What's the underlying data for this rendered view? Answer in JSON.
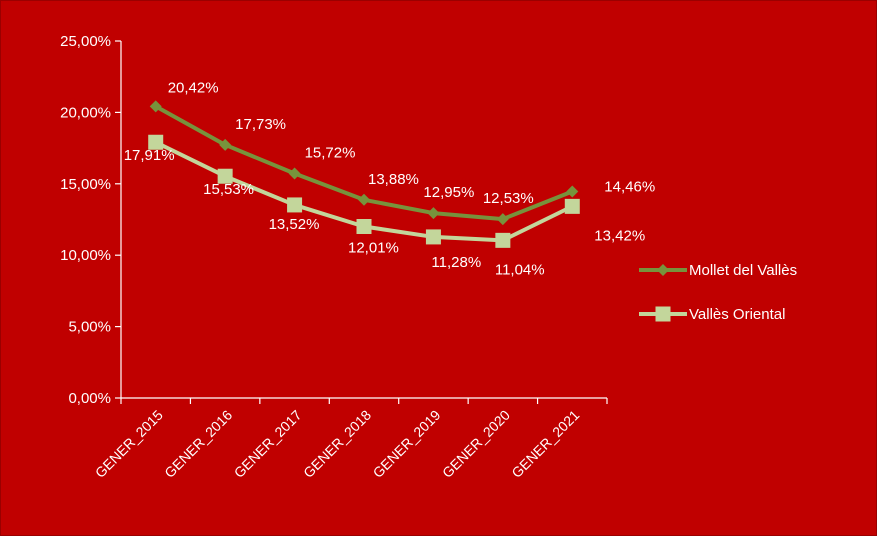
{
  "colors": {
    "background": "#c00000",
    "axis": "#ffffff",
    "series_1": "#77933c",
    "series_2": "#c3d69b"
  },
  "chart_data": {
    "type": "line",
    "title": "",
    "xlabel": "",
    "ylabel": "",
    "categories": [
      "GENER_2015",
      "GENER_2016",
      "GENER_2017",
      "GENER_2018",
      "GENER_2019",
      "GENER_2020",
      "GENER_2021"
    ],
    "ylim": [
      0,
      25
    ],
    "yticks": [
      0,
      5,
      10,
      15,
      20,
      25
    ],
    "ytick_labels": [
      "0,00%",
      "5,00%",
      "10,00%",
      "15,00%",
      "20,00%",
      "25,00%"
    ],
    "grid": false,
    "legend": "right",
    "series": [
      {
        "name": "Mollet del Vallès",
        "marker": "diamond",
        "color": "#77933c",
        "values": [
          20.42,
          17.73,
          15.72,
          13.88,
          12.95,
          12.53,
          14.46
        ],
        "labels": [
          "20,42%",
          "17,73%",
          "15,72%",
          "13,88%",
          "12,95%",
          "12,53%",
          "14,46%"
        ]
      },
      {
        "name": "Vallès Oriental",
        "marker": "square",
        "color": "#c3d69b",
        "values": [
          17.91,
          15.53,
          13.52,
          12.01,
          11.28,
          11.04,
          13.42
        ],
        "labels": [
          "17,91%",
          "15,53%",
          "13,52%",
          "12,01%",
          "11,28%",
          "11,04%",
          "13,42%"
        ]
      }
    ]
  }
}
